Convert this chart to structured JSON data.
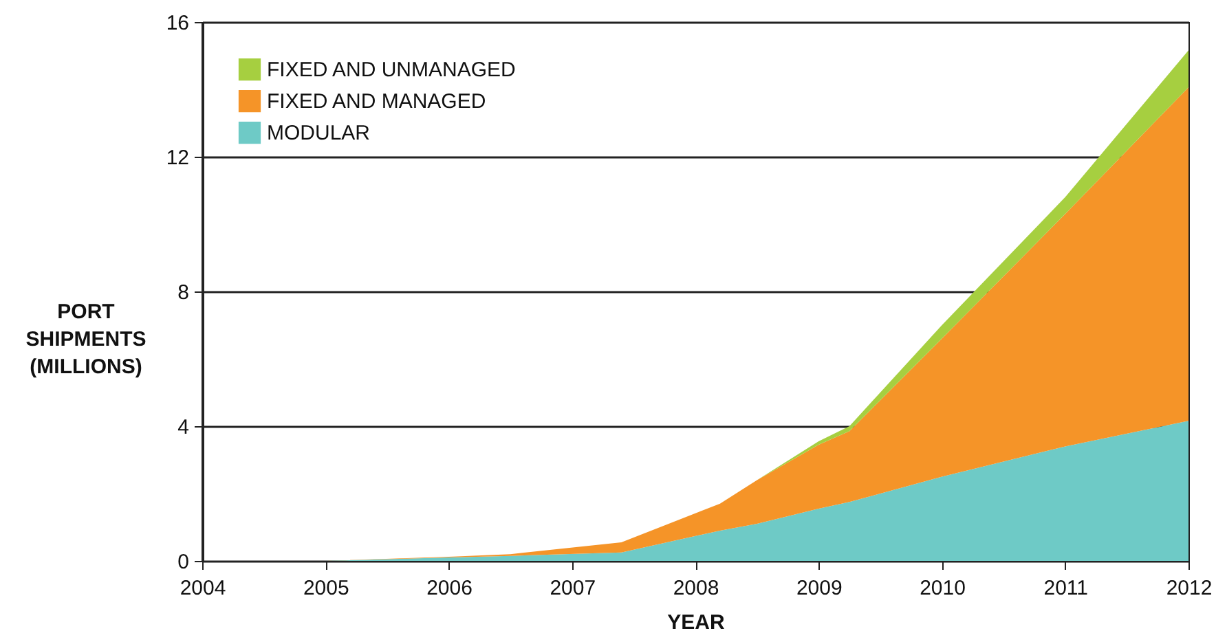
{
  "chart_data": {
    "type": "area",
    "stacked": true,
    "xlabel": "YEAR",
    "ylabel": "PORT SHIPMENTS (MILLIONS)",
    "x": [
      2005,
      2006,
      2006.5,
      2007.4,
      2008.2,
      2008.5,
      2009,
      2009.25,
      2010,
      2011,
      2012
    ],
    "series": [
      {
        "name": "MODULAR",
        "color": "#6ecac6",
        "values": [
          0,
          0.1,
          0.15,
          0.25,
          0.9,
          1.1,
          1.55,
          1.75,
          2.5,
          3.4,
          4.16
        ]
      },
      {
        "name": "FIXED AND MANAGED",
        "color": "#f59428",
        "values": [
          0,
          0.02,
          0.05,
          0.3,
          0.8,
          1.3,
          1.9,
          2.1,
          4.1,
          6.9,
          9.9
        ]
      },
      {
        "name": "FIXED AND UNMANAGED",
        "color": "#a6cf40",
        "values": [
          0,
          0,
          0,
          0,
          0,
          0,
          0.1,
          0.15,
          0.4,
          0.5,
          1.1
        ]
      }
    ],
    "xlim": [
      2004,
      2012
    ],
    "xticks": [
      2004,
      2005,
      2006,
      2007,
      2008,
      2009,
      2010,
      2011,
      2012
    ],
    "ylim": [
      0,
      16
    ],
    "yticks": [
      0,
      4,
      8,
      12,
      16
    ],
    "grid": "y",
    "legend": "top left"
  }
}
